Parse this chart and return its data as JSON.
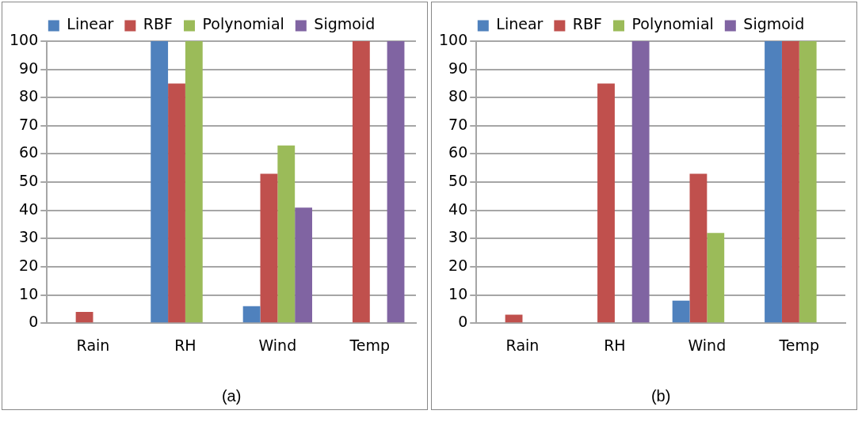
{
  "chart_data": [
    {
      "type": "bar",
      "xlabel": "(a)",
      "categories": [
        "Rain",
        "RH",
        "Wind",
        "Temp"
      ],
      "ylim": [
        0,
        100
      ],
      "yticks": [
        0,
        10,
        20,
        30,
        40,
        50,
        60,
        70,
        80,
        90,
        100
      ],
      "grid": "y",
      "legend": "top",
      "series": [
        {
          "name": "Linear",
          "color": "#4f81bd",
          "values": [
            0,
            100,
            6,
            0
          ]
        },
        {
          "name": "RBF",
          "color": "#c0504d",
          "values": [
            4,
            85,
            53,
            100
          ]
        },
        {
          "name": "Polynomial",
          "color": "#9bbb59",
          "values": [
            0,
            100,
            63,
            0
          ]
        },
        {
          "name": "Sigmoid",
          "color": "#8064a2",
          "values": [
            0,
            0,
            41,
            100
          ]
        }
      ]
    },
    {
      "type": "bar",
      "xlabel": "(b)",
      "categories": [
        "Rain",
        "RH",
        "Wind",
        "Temp"
      ],
      "ylim": [
        0,
        100
      ],
      "yticks": [
        0,
        10,
        20,
        30,
        40,
        50,
        60,
        70,
        80,
        90,
        100
      ],
      "grid": "y",
      "legend": "top",
      "series": [
        {
          "name": "Linear",
          "color": "#4f81bd",
          "values": [
            0,
            0,
            8,
            100
          ]
        },
        {
          "name": "RBF",
          "color": "#c0504d",
          "values": [
            3,
            85,
            53,
            100
          ]
        },
        {
          "name": "Polynomial",
          "color": "#9bbb59",
          "values": [
            0,
            0,
            32,
            100
          ]
        },
        {
          "name": "Sigmoid",
          "color": "#8064a2",
          "values": [
            0,
            100,
            0,
            0
          ]
        }
      ]
    }
  ]
}
